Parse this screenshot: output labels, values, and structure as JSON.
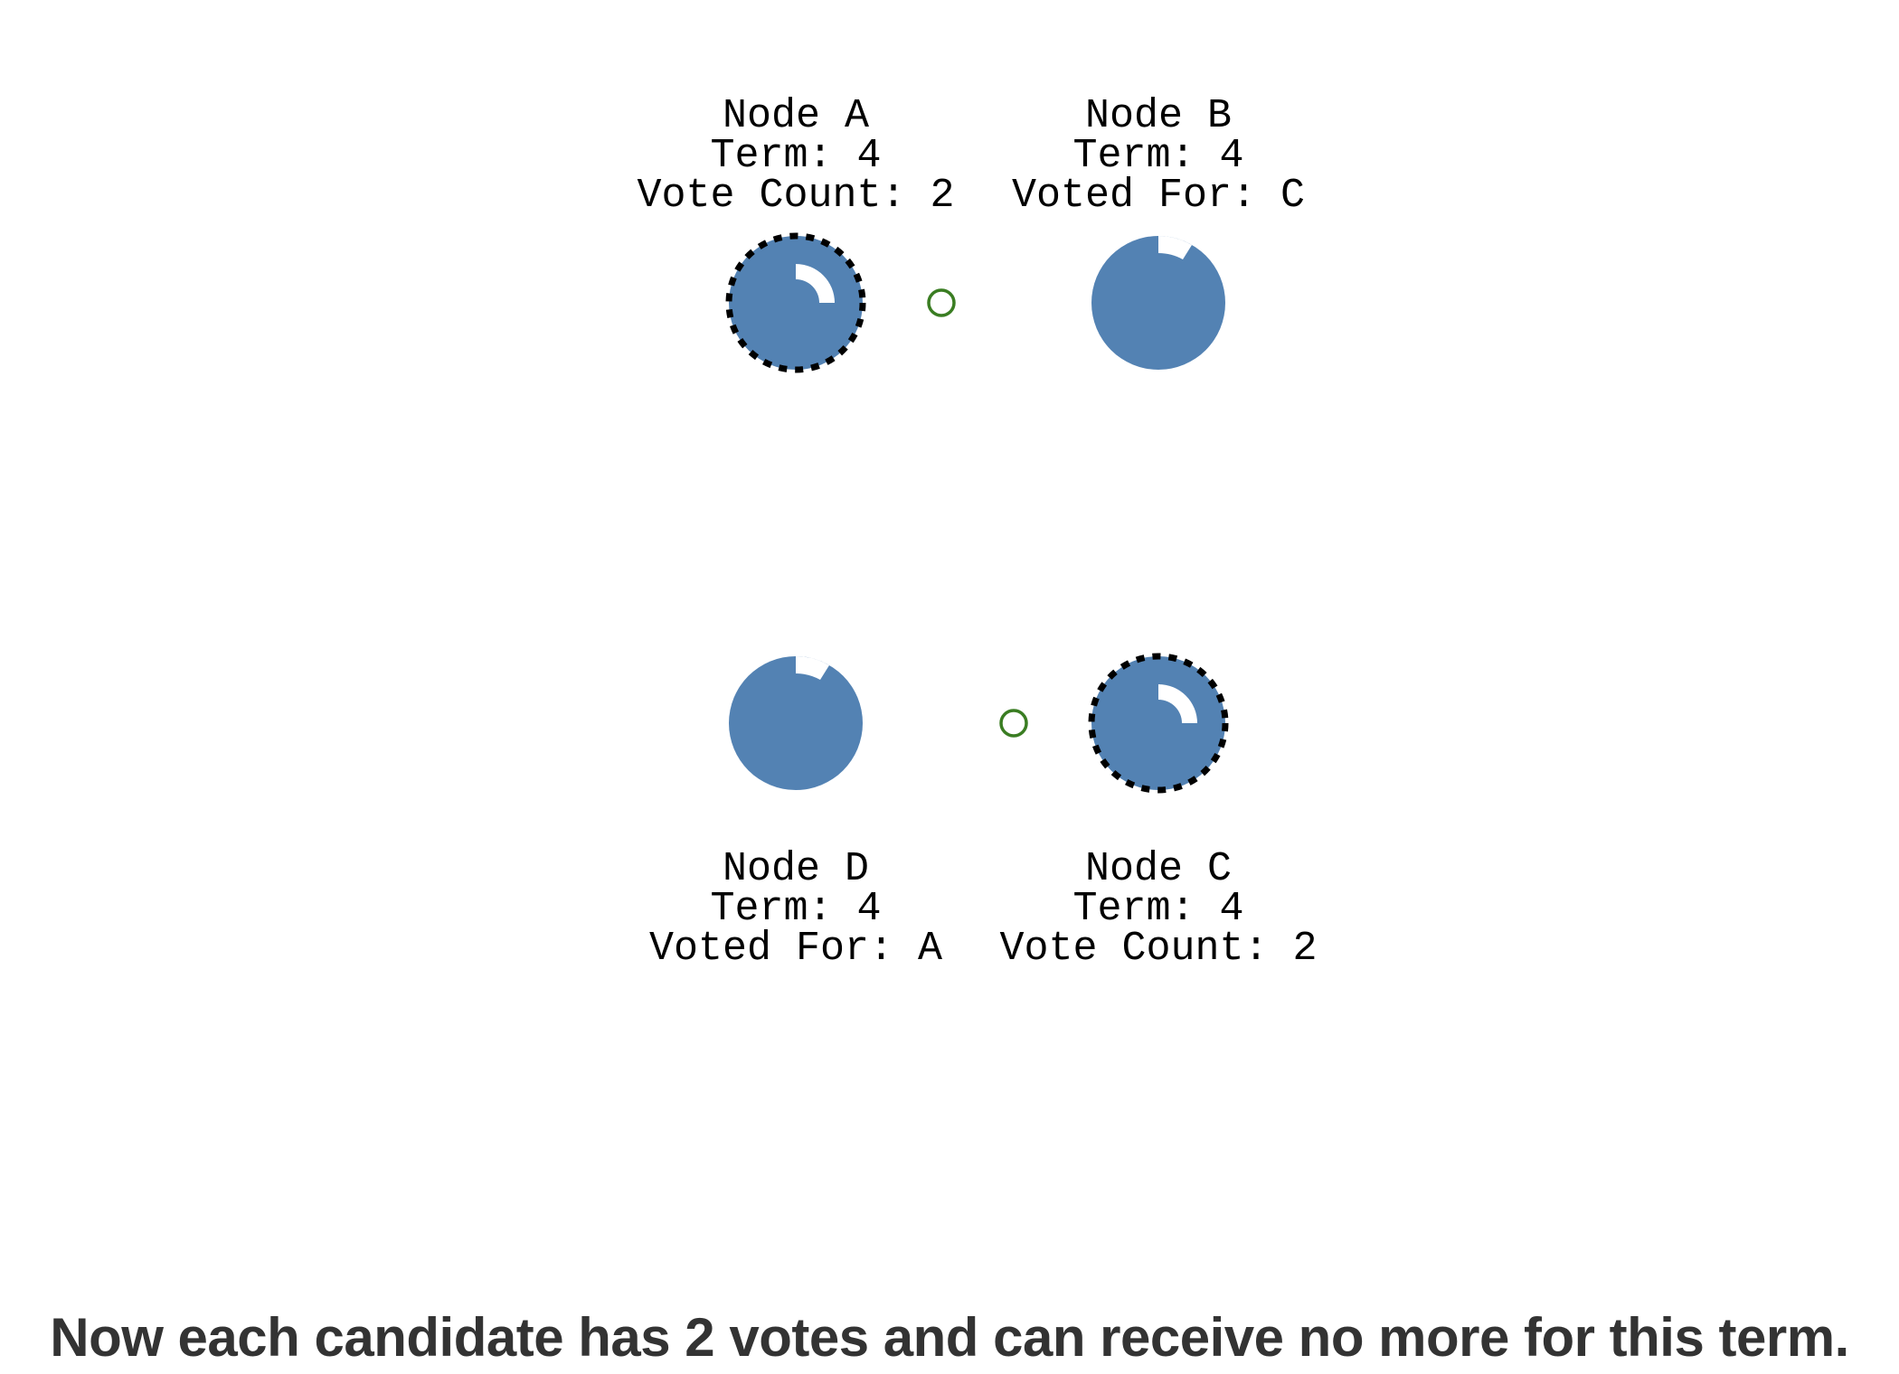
{
  "colors": {
    "node_fill": "#5382b3",
    "node_border": "#000000",
    "timer_arc": "#ffffff",
    "message": "#3a7d22",
    "caption": "#333333"
  },
  "nodes": {
    "a": {
      "name": "Node A",
      "term": "Term: 4",
      "detail": "Vote Count: 2",
      "role": "candidate"
    },
    "b": {
      "name": "Node B",
      "term": "Term: 4",
      "detail": "Voted For: C",
      "role": "follower"
    },
    "c": {
      "name": "Node C",
      "term": "Term: 4",
      "detail": "Vote Count: 2",
      "role": "candidate"
    },
    "d": {
      "name": "Node D",
      "term": "Term: 4",
      "detail": "Voted For: A",
      "role": "follower"
    }
  },
  "caption": "Now each candidate has 2 votes and can receive no more for this term."
}
